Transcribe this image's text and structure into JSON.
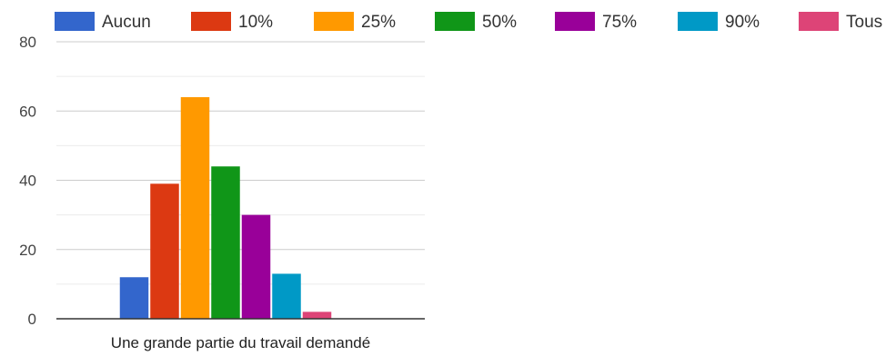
{
  "chart_data": {
    "type": "bar",
    "categories": [
      "Une grande partie du travail demandé"
    ],
    "series": [
      {
        "name": "Aucun",
        "values": [
          12
        ],
        "color": "#3366cc"
      },
      {
        "name": "10%",
        "values": [
          39
        ],
        "color": "#dc3912"
      },
      {
        "name": "25%",
        "values": [
          64
        ],
        "color": "#ff9900"
      },
      {
        "name": "50%",
        "values": [
          44
        ],
        "color": "#109618"
      },
      {
        "name": "75%",
        "values": [
          30
        ],
        "color": "#990099"
      },
      {
        "name": "90%",
        "values": [
          13
        ],
        "color": "#0099c6"
      },
      {
        "name": "Tous",
        "values": [
          2
        ],
        "color": "#dd4477"
      }
    ],
    "title": "",
    "xlabel": "",
    "ylabel": "",
    "ylim": [
      0,
      80
    ],
    "yticks": [
      0,
      20,
      40,
      60,
      80
    ],
    "grid": true,
    "legend_position": "top"
  }
}
